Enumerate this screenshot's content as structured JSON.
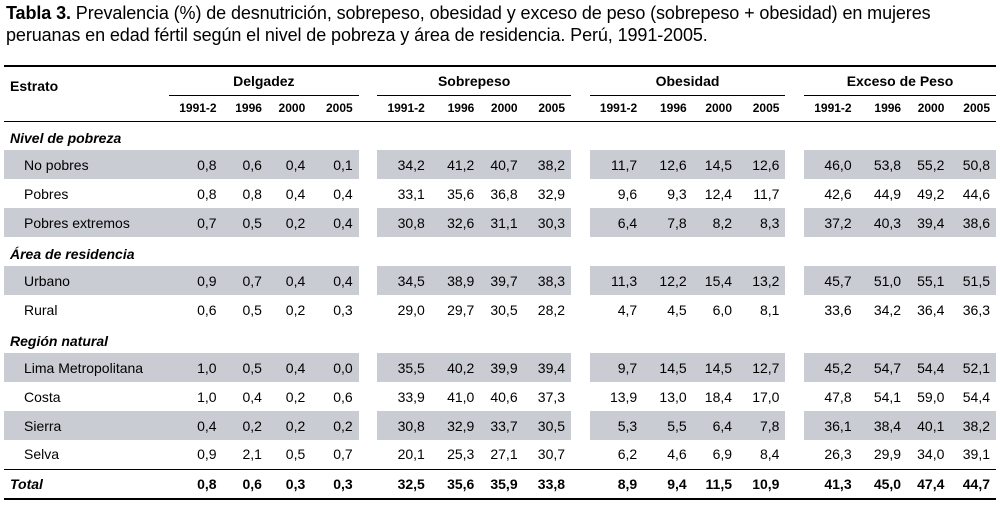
{
  "caption": {
    "label": "Tabla 3.",
    "text": " Prevalencia (%) de desnutrición, sobrepeso, obesidad y exceso de peso (sobrepeso + obesidad) en mujeres peruanas en edad fértil según el nivel de pobreza y área de residencia. Perú, 1991-2005."
  },
  "header": {
    "estrato": "Estrato",
    "groups": [
      "Delgadez",
      "Sobrepeso",
      "Obesidad",
      "Exceso de Peso"
    ],
    "years": [
      "1991-2",
      "1996",
      "2000",
      "2005"
    ]
  },
  "sections": [
    {
      "title": "Nivel de pobreza",
      "rows": [
        {
          "label": "No pobres",
          "shaded": true,
          "values": [
            "0,8",
            "0,6",
            "0,4",
            "0,1",
            "34,2",
            "41,2",
            "40,7",
            "38,2",
            "11,7",
            "12,6",
            "14,5",
            "12,6",
            "46,0",
            "53,8",
            "55,2",
            "50,8"
          ]
        },
        {
          "label": "Pobres",
          "shaded": false,
          "values": [
            "0,8",
            "0,8",
            "0,4",
            "0,4",
            "33,1",
            "35,6",
            "36,8",
            "32,9",
            "9,6",
            "9,3",
            "12,4",
            "11,7",
            "42,6",
            "44,9",
            "49,2",
            "44,6"
          ]
        },
        {
          "label": "Pobres extremos",
          "shaded": true,
          "values": [
            "0,7",
            "0,5",
            "0,2",
            "0,4",
            "30,8",
            "32,6",
            "31,1",
            "30,3",
            "6,4",
            "7,8",
            "8,2",
            "8,3",
            "37,2",
            "40,3",
            "39,4",
            "38,6"
          ]
        }
      ]
    },
    {
      "title": "Área de residencia",
      "rows": [
        {
          "label": "Urbano",
          "shaded": true,
          "values": [
            "0,9",
            "0,7",
            "0,4",
            "0,4",
            "34,5",
            "38,9",
            "39,7",
            "38,3",
            "11,3",
            "12,2",
            "15,4",
            "13,2",
            "45,7",
            "51,0",
            "55,1",
            "51,5"
          ]
        },
        {
          "label": "Rural",
          "shaded": false,
          "values": [
            "0,6",
            "0,5",
            "0,2",
            "0,3",
            "29,0",
            "29,7",
            "30,5",
            "28,2",
            "4,7",
            "4,5",
            "6,0",
            "8,1",
            "33,6",
            "34,2",
            "36,4",
            "36,3"
          ]
        }
      ]
    },
    {
      "title": "Región natural",
      "rows": [
        {
          "label": "Lima Metropolitana",
          "shaded": true,
          "values": [
            "1,0",
            "0,5",
            "0,4",
            "0,0",
            "35,5",
            "40,2",
            "39,9",
            "39,4",
            "9,7",
            "14,5",
            "14,5",
            "12,7",
            "45,2",
            "54,7",
            "54,4",
            "52,1"
          ]
        },
        {
          "label": "Costa",
          "shaded": false,
          "values": [
            "1,0",
            "0,4",
            "0,2",
            "0,6",
            "33,9",
            "41,0",
            "40,6",
            "37,3",
            "13,9",
            "13,0",
            "18,4",
            "17,0",
            "47,8",
            "54,1",
            "59,0",
            "54,4"
          ]
        },
        {
          "label": "Sierra",
          "shaded": true,
          "values": [
            "0,4",
            "0,2",
            "0,2",
            "0,2",
            "30,8",
            "32,9",
            "33,7",
            "30,5",
            "5,3",
            "5,5",
            "6,4",
            "7,8",
            "36,1",
            "38,4",
            "40,1",
            "38,2"
          ]
        },
        {
          "label": "Selva",
          "shaded": false,
          "values": [
            "0,9",
            "2,1",
            "0,5",
            "0,7",
            "20,1",
            "25,3",
            "27,1",
            "30,7",
            "6,2",
            "4,6",
            "6,9",
            "8,4",
            "26,3",
            "29,9",
            "34,0",
            "39,1"
          ]
        }
      ]
    }
  ],
  "total": {
    "label": "Total",
    "values": [
      "0,8",
      "0,6",
      "0,3",
      "0,3",
      "32,5",
      "35,6",
      "35,9",
      "33,8",
      "8,9",
      "9,4",
      "11,5",
      "10,9",
      "41,3",
      "45,0",
      "47,4",
      "44,7"
    ]
  },
  "colors": {
    "shade": "#c9ccd3",
    "rule": "#000000"
  }
}
